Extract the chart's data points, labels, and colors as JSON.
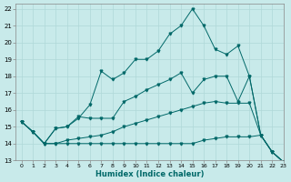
{
  "title": "",
  "xlabel": "Humidex (Indice chaleur)",
  "ylabel": "",
  "bg_color": "#c8eaea",
  "grid_color": "#afd8d8",
  "line_color": "#006868",
  "xlim": [
    -0.5,
    23
  ],
  "ylim": [
    13,
    22.3
  ],
  "xticks": [
    0,
    1,
    2,
    3,
    4,
    5,
    6,
    7,
    8,
    9,
    10,
    11,
    12,
    13,
    14,
    15,
    16,
    17,
    18,
    19,
    20,
    21,
    22,
    23
  ],
  "yticks": [
    13,
    14,
    15,
    16,
    17,
    18,
    19,
    20,
    21,
    22
  ],
  "line1_x": [
    0,
    1,
    2,
    3,
    4,
    5,
    6,
    7,
    8,
    9,
    10,
    11,
    12,
    13,
    14,
    15,
    16,
    17,
    18,
    19,
    20,
    21,
    22,
    23
  ],
  "line1_y": [
    15.3,
    14.7,
    14.0,
    14.9,
    15.0,
    15.5,
    16.3,
    18.3,
    17.8,
    18.2,
    19.0,
    19.0,
    19.5,
    20.5,
    21.0,
    22.0,
    21.0,
    19.6,
    19.3,
    19.8,
    18.0,
    14.5,
    13.5,
    12.9
  ],
  "line2_x": [
    0,
    1,
    2,
    3,
    4,
    5,
    6,
    7,
    8,
    9,
    10,
    11,
    12,
    13,
    14,
    15,
    16,
    17,
    18,
    19,
    20,
    21,
    22,
    23
  ],
  "line2_y": [
    15.3,
    14.7,
    14.0,
    14.9,
    15.0,
    15.6,
    15.5,
    15.5,
    15.5,
    16.5,
    16.8,
    17.2,
    17.5,
    17.8,
    18.2,
    17.0,
    17.8,
    18.0,
    18.0,
    16.5,
    18.0,
    14.5,
    13.5,
    12.9
  ],
  "line3_x": [
    0,
    1,
    2,
    3,
    4,
    5,
    6,
    7,
    8,
    9,
    10,
    11,
    12,
    13,
    14,
    15,
    16,
    17,
    18,
    19,
    20,
    21,
    22,
    23
  ],
  "line3_y": [
    15.3,
    14.7,
    14.0,
    14.0,
    14.2,
    14.3,
    14.4,
    14.5,
    14.7,
    15.0,
    15.2,
    15.4,
    15.6,
    15.8,
    16.0,
    16.2,
    16.4,
    16.5,
    16.4,
    16.4,
    16.4,
    14.5,
    13.5,
    12.9
  ],
  "line4_x": [
    0,
    1,
    2,
    3,
    4,
    5,
    6,
    7,
    8,
    9,
    10,
    11,
    12,
    13,
    14,
    15,
    16,
    17,
    18,
    19,
    20,
    21,
    22,
    23
  ],
  "line4_y": [
    15.3,
    14.7,
    14.0,
    14.0,
    14.0,
    14.0,
    14.0,
    14.0,
    14.0,
    14.0,
    14.0,
    14.0,
    14.0,
    14.0,
    14.0,
    14.0,
    14.2,
    14.3,
    14.4,
    14.4,
    14.4,
    14.5,
    13.5,
    12.9
  ]
}
